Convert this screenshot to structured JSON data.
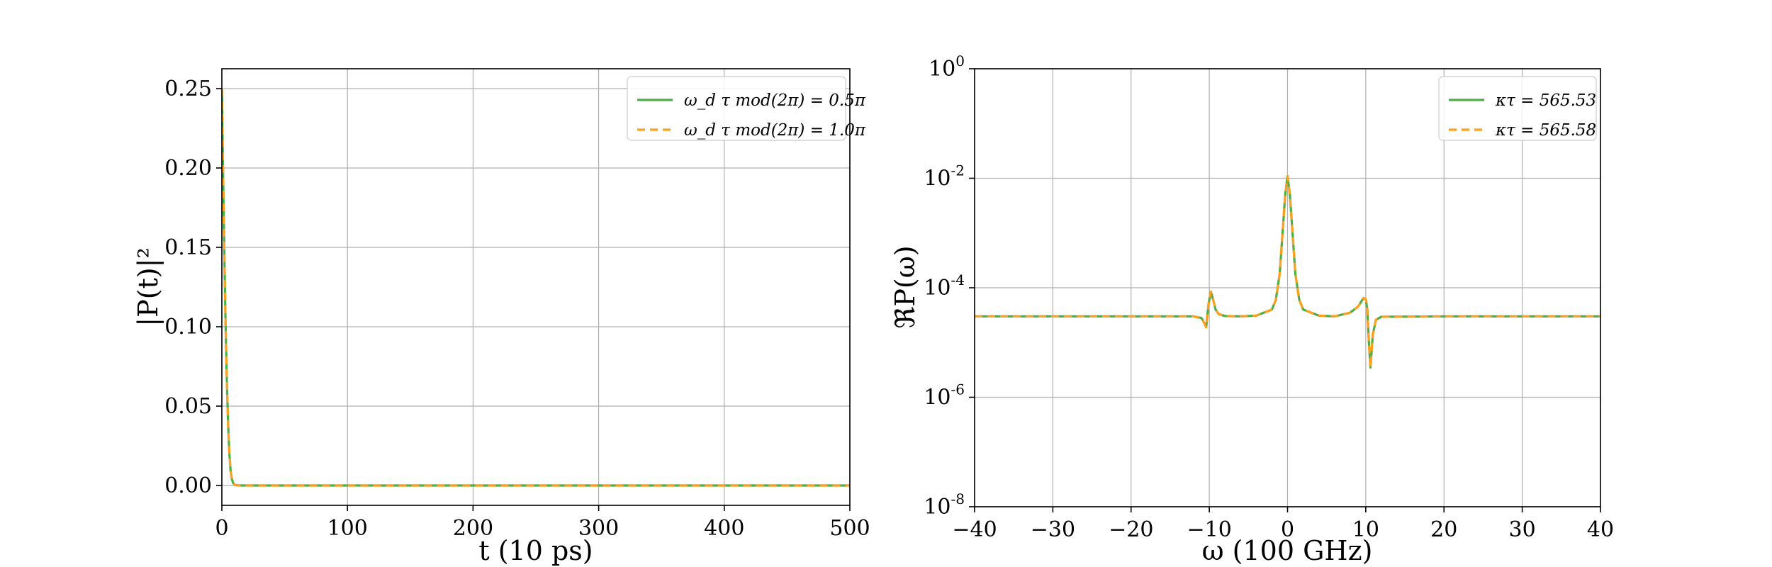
{
  "chart_data": [
    {
      "type": "line",
      "xlabel": "t (10 ps)",
      "ylabel": "|P(t)|²",
      "xlim": [
        0,
        500
      ],
      "ylim": [
        -0.0125,
        0.2625
      ],
      "xticks": [
        0,
        100,
        200,
        300,
        400,
        500
      ],
      "xtick_labels": [
        "0",
        "100",
        "200",
        "300",
        "400",
        "500"
      ],
      "yticks": [
        0.0,
        0.05,
        0.1,
        0.15,
        0.2,
        0.25
      ],
      "ytick_labels": [
        "0.00",
        "0.05",
        "0.10",
        "0.15",
        "0.20",
        "0.25"
      ],
      "grid": true,
      "legend_position": "top-right",
      "series": [
        {
          "name": "ω_d τ mod(2π) = 0.5π",
          "color": "#4daf4a",
          "style": "solid",
          "x": [
            0,
            1,
            2,
            3,
            4,
            5,
            6,
            7,
            8,
            9,
            10,
            12,
            15,
            20,
            50,
            100,
            200,
            300,
            400,
            500
          ],
          "y": [
            0.25,
            0.195,
            0.145,
            0.1,
            0.065,
            0.038,
            0.02,
            0.009,
            0.004,
            0.0015,
            0.0005,
            0.0001,
            0.0,
            0.0,
            0.0,
            0.0,
            0.0,
            0.0,
            0.0,
            0.0
          ]
        },
        {
          "name": "ω_d τ mod(2π) = 1.0π",
          "color": "#ff9f1c",
          "style": "dashed",
          "x": [
            0,
            1,
            2,
            3,
            4,
            5,
            6,
            7,
            8,
            9,
            10,
            12,
            15,
            20,
            50,
            100,
            200,
            300,
            400,
            500
          ],
          "y": [
            0.25,
            0.195,
            0.145,
            0.1,
            0.065,
            0.038,
            0.02,
            0.009,
            0.004,
            0.0015,
            0.0005,
            0.0001,
            0.0,
            0.0,
            0.0,
            0.0,
            0.0,
            0.0,
            0.0,
            0.0
          ]
        }
      ]
    },
    {
      "type": "line",
      "xlabel": "ω (100 GHz)",
      "ylabel": "ℜP(ω)",
      "xscale": "linear",
      "yscale": "log",
      "xlim": [
        -40,
        40
      ],
      "ylim": [
        1e-08,
        1
      ],
      "xticks": [
        -40,
        -30,
        -20,
        -10,
        0,
        10,
        20,
        30,
        40
      ],
      "xtick_labels": [
        "−40",
        "−30",
        "−20",
        "−10",
        "0",
        "10",
        "20",
        "30",
        "40"
      ],
      "yticks": [
        1e-08,
        1e-06,
        0.0001,
        0.01,
        1
      ],
      "ytick_base": [
        "10",
        "10",
        "10",
        "10",
        "10"
      ],
      "ytick_exp": [
        "-8",
        "-6",
        "-4",
        "-2",
        "0"
      ],
      "grid": true,
      "legend_position": "top-right",
      "series": [
        {
          "name": "κτ = 565.53",
          "color": "#4daf4a",
          "style": "solid",
          "x": [
            -40,
            -20,
            -12,
            -11,
            -10.6,
            -10.4,
            -10.1,
            -9.8,
            -9.5,
            -9.2,
            -8.8,
            -8,
            -6,
            -4,
            -2,
            -1.5,
            -1,
            -0.6,
            -0.3,
            0,
            0.3,
            0.6,
            1,
            1.5,
            2,
            4,
            6,
            8,
            9,
            9.4,
            9.7,
            10,
            10.2,
            10.4,
            10.6,
            10.9,
            11.3,
            12,
            20,
            40
          ],
          "y": [
            3e-05,
            3e-05,
            3e-05,
            2.8e-05,
            2.2e-05,
            1.9e-05,
            5e-05,
            8.5e-05,
            6e-05,
            4e-05,
            3.3e-05,
            3.05e-05,
            3e-05,
            3.1e-05,
            4e-05,
            6e-05,
            0.00018,
            0.0012,
            0.005,
            0.011,
            0.005,
            0.0012,
            0.00018,
            6e-05,
            4e-05,
            3.1e-05,
            3e-05,
            3.5e-05,
            4.5e-05,
            5.5e-05,
            6.5e-05,
            6.2e-05,
            4e-05,
            1e-05,
            3.5e-06,
            1.4e-05,
            2.6e-05,
            2.95e-05,
            3e-05,
            3e-05
          ]
        },
        {
          "name": "κτ = 565.58",
          "color": "#ff9f1c",
          "style": "dashed",
          "x": [
            -40,
            -20,
            -12,
            -11,
            -10.6,
            -10.4,
            -10.1,
            -9.8,
            -9.5,
            -9.2,
            -8.8,
            -8,
            -6,
            -4,
            -2,
            -1.5,
            -1,
            -0.6,
            -0.3,
            0,
            0.3,
            0.6,
            1,
            1.5,
            2,
            4,
            6,
            8,
            9,
            9.4,
            9.7,
            10,
            10.2,
            10.4,
            10.6,
            10.9,
            11.3,
            12,
            20,
            40
          ],
          "y": [
            3e-05,
            3e-05,
            3e-05,
            2.8e-05,
            2.2e-05,
            1.9e-05,
            5e-05,
            8.5e-05,
            6e-05,
            4e-05,
            3.3e-05,
            3.05e-05,
            3e-05,
            3.1e-05,
            4e-05,
            6e-05,
            0.00018,
            0.0012,
            0.005,
            0.011,
            0.005,
            0.0012,
            0.00018,
            6e-05,
            4e-05,
            3.1e-05,
            3e-05,
            3.5e-05,
            4.5e-05,
            5.5e-05,
            6.5e-05,
            6.2e-05,
            4e-05,
            1e-05,
            3.5e-06,
            1.4e-05,
            2.6e-05,
            2.95e-05,
            3e-05,
            3e-05
          ]
        }
      ]
    }
  ]
}
